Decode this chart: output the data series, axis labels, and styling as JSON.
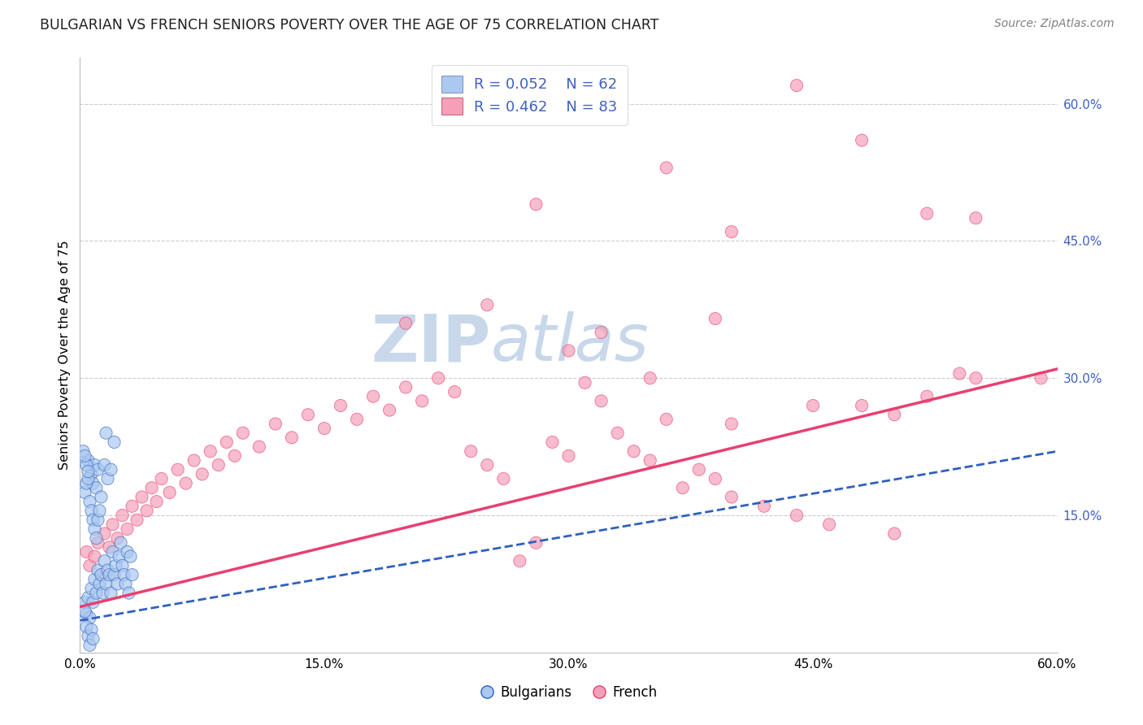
{
  "title": "BULGARIAN VS FRENCH SENIORS POVERTY OVER THE AGE OF 75 CORRELATION CHART",
  "source": "Source: ZipAtlas.com",
  "ylabel": "Seniors Poverty Over the Age of 75",
  "xlim": [
    0.0,
    60.0
  ],
  "ylim": [
    0.0,
    65.0
  ],
  "xtick_labels": [
    "0.0%",
    "15.0%",
    "30.0%",
    "45.0%",
    "60.0%"
  ],
  "xtick_vals": [
    0.0,
    15.0,
    30.0,
    45.0,
    60.0
  ],
  "ytick_labels_right": [
    "60.0%",
    "45.0%",
    "30.0%",
    "15.0%"
  ],
  "ytick_vals_right": [
    60.0,
    45.0,
    30.0,
    15.0
  ],
  "legend_R_blue": "0.052",
  "legend_N_blue": "62",
  "legend_R_pink": "0.462",
  "legend_N_pink": "83",
  "legend_label_blue": "Bulgarians",
  "legend_label_pink": "French",
  "blue_color": "#aac8f0",
  "pink_color": "#f5a0b8",
  "blue_line_color": "#3060c0",
  "pink_line_color": "#e84070",
  "grid_color": "#cccccc",
  "watermark_zip": "ZIP",
  "watermark_atlas": "atlas",
  "watermark_color": "#c8d8ea",
  "title_color": "#202020",
  "source_color": "#808080",
  "label_color": "#4060c0",
  "blue_scatter": [
    [
      0.3,
      5.5
    ],
    [
      0.4,
      4.2
    ],
    [
      0.5,
      6.0
    ],
    [
      0.6,
      3.8
    ],
    [
      0.7,
      7.0
    ],
    [
      0.8,
      5.5
    ],
    [
      0.9,
      8.0
    ],
    [
      1.0,
      6.5
    ],
    [
      1.1,
      9.0
    ],
    [
      1.2,
      7.5
    ],
    [
      1.3,
      8.5
    ],
    [
      1.4,
      6.5
    ],
    [
      1.5,
      10.0
    ],
    [
      1.6,
      7.5
    ],
    [
      1.7,
      9.0
    ],
    [
      1.8,
      8.5
    ],
    [
      1.9,
      6.5
    ],
    [
      2.0,
      11.0
    ],
    [
      2.1,
      8.5
    ],
    [
      2.2,
      9.5
    ],
    [
      2.3,
      7.5
    ],
    [
      2.4,
      10.5
    ],
    [
      2.5,
      12.0
    ],
    [
      2.6,
      9.5
    ],
    [
      2.7,
      8.5
    ],
    [
      2.8,
      7.5
    ],
    [
      2.9,
      11.0
    ],
    [
      3.0,
      6.5
    ],
    [
      3.1,
      10.5
    ],
    [
      3.2,
      8.5
    ],
    [
      0.5,
      21.0
    ],
    [
      0.7,
      19.5
    ],
    [
      0.8,
      18.5
    ],
    [
      0.9,
      20.5
    ],
    [
      1.0,
      18.0
    ],
    [
      1.1,
      20.0
    ],
    [
      1.3,
      17.0
    ],
    [
      1.5,
      20.5
    ],
    [
      1.7,
      19.0
    ],
    [
      1.9,
      20.0
    ],
    [
      0.3,
      17.5
    ],
    [
      0.4,
      18.5
    ],
    [
      0.5,
      19.0
    ],
    [
      0.6,
      16.5
    ],
    [
      0.7,
      15.5
    ],
    [
      0.8,
      14.5
    ],
    [
      0.9,
      13.5
    ],
    [
      1.0,
      12.5
    ],
    [
      1.1,
      14.5
    ],
    [
      1.2,
      15.5
    ],
    [
      1.6,
      24.0
    ],
    [
      2.1,
      23.0
    ],
    [
      0.3,
      4.5
    ],
    [
      0.4,
      2.8
    ],
    [
      0.5,
      1.8
    ],
    [
      0.6,
      0.8
    ],
    [
      0.7,
      2.5
    ],
    [
      0.8,
      1.5
    ],
    [
      0.4,
      20.5
    ],
    [
      0.5,
      19.8
    ],
    [
      0.2,
      22.0
    ],
    [
      0.3,
      21.5
    ]
  ],
  "pink_scatter": [
    [
      0.4,
      11.0
    ],
    [
      0.6,
      9.5
    ],
    [
      0.9,
      10.5
    ],
    [
      1.1,
      12.0
    ],
    [
      1.3,
      8.5
    ],
    [
      1.5,
      13.0
    ],
    [
      1.8,
      11.5
    ],
    [
      2.0,
      14.0
    ],
    [
      2.3,
      12.5
    ],
    [
      2.6,
      15.0
    ],
    [
      2.9,
      13.5
    ],
    [
      3.2,
      16.0
    ],
    [
      3.5,
      14.5
    ],
    [
      3.8,
      17.0
    ],
    [
      4.1,
      15.5
    ],
    [
      4.4,
      18.0
    ],
    [
      4.7,
      16.5
    ],
    [
      5.0,
      19.0
    ],
    [
      5.5,
      17.5
    ],
    [
      6.0,
      20.0
    ],
    [
      6.5,
      18.5
    ],
    [
      7.0,
      21.0
    ],
    [
      7.5,
      19.5
    ],
    [
      8.0,
      22.0
    ],
    [
      8.5,
      20.5
    ],
    [
      9.0,
      23.0
    ],
    [
      9.5,
      21.5
    ],
    [
      10.0,
      24.0
    ],
    [
      11.0,
      22.5
    ],
    [
      12.0,
      25.0
    ],
    [
      13.0,
      23.5
    ],
    [
      14.0,
      26.0
    ],
    [
      15.0,
      24.5
    ],
    [
      16.0,
      27.0
    ],
    [
      17.0,
      25.5
    ],
    [
      18.0,
      28.0
    ],
    [
      19.0,
      26.5
    ],
    [
      20.0,
      29.0
    ],
    [
      21.0,
      27.5
    ],
    [
      22.0,
      30.0
    ],
    [
      23.0,
      28.5
    ],
    [
      24.0,
      22.0
    ],
    [
      25.0,
      20.5
    ],
    [
      26.0,
      19.0
    ],
    [
      27.0,
      10.0
    ],
    [
      28.0,
      12.0
    ],
    [
      29.0,
      23.0
    ],
    [
      30.0,
      21.5
    ],
    [
      31.0,
      29.5
    ],
    [
      32.0,
      27.5
    ],
    [
      33.0,
      24.0
    ],
    [
      34.0,
      22.0
    ],
    [
      35.0,
      21.0
    ],
    [
      36.0,
      25.5
    ],
    [
      37.0,
      18.0
    ],
    [
      38.0,
      20.0
    ],
    [
      39.0,
      19.0
    ],
    [
      40.0,
      17.0
    ],
    [
      42.0,
      16.0
    ],
    [
      44.0,
      15.0
    ],
    [
      46.0,
      14.0
    ],
    [
      48.0,
      27.0
    ],
    [
      50.0,
      13.0
    ],
    [
      52.0,
      28.0
    ],
    [
      54.0,
      30.5
    ],
    [
      20.0,
      36.0
    ],
    [
      25.0,
      38.0
    ],
    [
      30.0,
      33.0
    ],
    [
      35.0,
      30.0
    ],
    [
      40.0,
      25.0
    ],
    [
      45.0,
      27.0
    ],
    [
      50.0,
      26.0
    ],
    [
      55.0,
      30.0
    ],
    [
      59.0,
      30.0
    ],
    [
      39.0,
      36.5
    ],
    [
      32.0,
      35.0
    ],
    [
      55.0,
      47.5
    ],
    [
      40.0,
      46.0
    ],
    [
      36.0,
      53.0
    ],
    [
      44.0,
      62.0
    ],
    [
      28.0,
      49.0
    ],
    [
      48.0,
      56.0
    ],
    [
      52.0,
      48.0
    ]
  ],
  "blue_line_x": [
    0.0,
    60.0
  ],
  "blue_line_y": [
    3.5,
    22.0
  ],
  "pink_line_x": [
    0.0,
    60.0
  ],
  "pink_line_y": [
    5.0,
    31.0
  ]
}
